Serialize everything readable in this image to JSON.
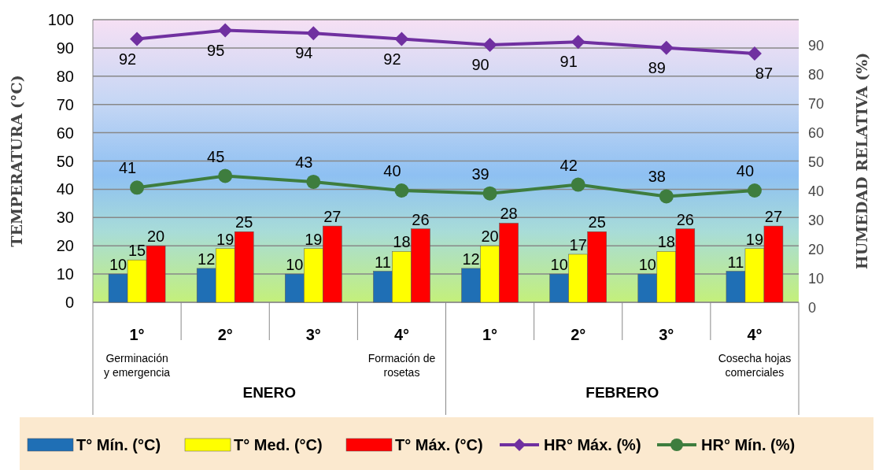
{
  "chart_data": {
    "type": "bar",
    "categories": [
      "1°",
      "2°",
      "3°",
      "4°",
      "1°",
      "2°",
      "3°",
      "4°"
    ],
    "series": [
      {
        "name": "T° Mín. (°C)",
        "color": "#1f6fb5",
        "values": [
          10,
          12,
          10,
          11,
          12,
          10,
          10,
          11
        ]
      },
      {
        "name": "T° Med. (°C)",
        "color": "#ffff00",
        "values": [
          15,
          19,
          19,
          18,
          20,
          17,
          18,
          19
        ]
      },
      {
        "name": "T° Máx. (°C)",
        "color": "#ff0000",
        "values": [
          20,
          25,
          27,
          26,
          28,
          25,
          26,
          27
        ]
      },
      {
        "name": "HR° Máx. (%)",
        "type": "line",
        "axis": "y2",
        "marker": "diamond",
        "color": "#7030a0",
        "values": [
          92,
          95,
          94,
          92,
          90,
          91,
          89,
          87
        ]
      },
      {
        "name": "HR° Mín. (%)",
        "type": "line",
        "axis": "y2",
        "marker": "circle",
        "color": "#3e7d3e",
        "values": [
          41,
          45,
          43,
          40,
          39,
          42,
          38,
          40
        ]
      }
    ],
    "ylabel": "TEMPERATURA (°C)",
    "y2label": "HUMEDAD RELATIVA (%)",
    "ylim": [
      0,
      100
    ],
    "yticks": [
      0,
      10,
      20,
      30,
      40,
      50,
      60,
      70,
      80,
      90,
      100
    ],
    "y2lim": [
      0,
      100
    ],
    "y2ticks": [
      0,
      10,
      20,
      30,
      40,
      50,
      60,
      70,
      80,
      90
    ],
    "annotations": [
      "Germinación y emergencia",
      "Formación de rosetas",
      "Cosecha hojas comerciales",
      "ENERO",
      "FEBRERO"
    ],
    "grid": "y",
    "legend": "bottom",
    "data_labels": true
  }
}
